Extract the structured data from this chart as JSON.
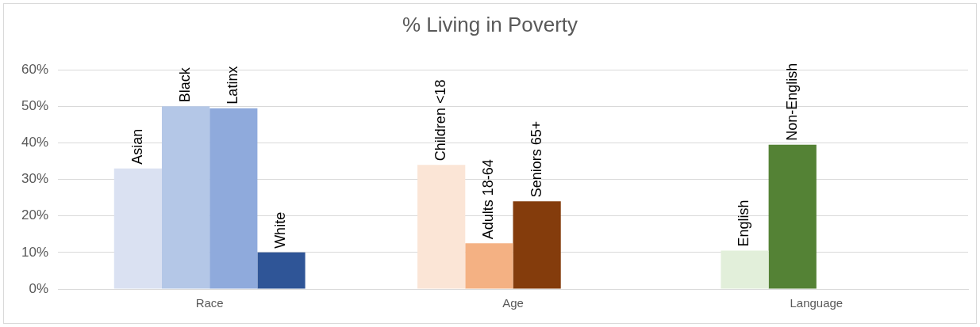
{
  "chart_data": {
    "type": "bar",
    "title": "% Living in Poverty",
    "categories": [
      "Race",
      "Age",
      "Language"
    ],
    "series": [
      {
        "name": "Asian",
        "color": "#dae1f2",
        "values": [
          33,
          null,
          null
        ]
      },
      {
        "name": "Black",
        "color": "#b4c7e7",
        "values": [
          50,
          null,
          null
        ]
      },
      {
        "name": "Latinx",
        "color": "#8faadc",
        "values": [
          49.5,
          null,
          null
        ]
      },
      {
        "name": "White",
        "color": "#2f5597",
        "values": [
          10,
          null,
          null
        ]
      },
      {
        "name": "Children <18",
        "color": "#fbe5d6",
        "values": [
          null,
          34,
          null
        ]
      },
      {
        "name": "Adults 18-64",
        "color": "#f4b183",
        "values": [
          null,
          12.5,
          null
        ]
      },
      {
        "name": "Seniors 65+",
        "color": "#843c0c",
        "values": [
          null,
          24,
          null
        ]
      },
      {
        "name": "English",
        "color": "#e2efda",
        "values": [
          null,
          null,
          10.5
        ]
      },
      {
        "name": "Non-English",
        "color": "#548235",
        "values": [
          null,
          null,
          39.5
        ]
      }
    ],
    "ylim": [
      0,
      60
    ],
    "yticks": [
      {
        "value": 0,
        "label": "0%"
      },
      {
        "value": 10,
        "label": "10%"
      },
      {
        "value": 20,
        "label": "20%"
      },
      {
        "value": 30,
        "label": "30%"
      },
      {
        "value": 40,
        "label": "40%"
      },
      {
        "value": 50,
        "label": "50%"
      },
      {
        "value": 60,
        "label": "60%"
      }
    ],
    "grid": "y",
    "legend": false
  }
}
